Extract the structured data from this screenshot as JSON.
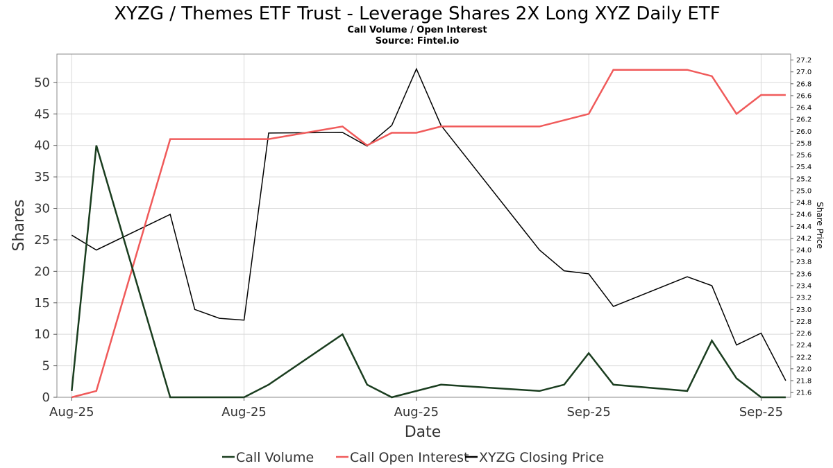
{
  "chart_data": {
    "type": "line",
    "title": "XYZG / Themes ETF Trust - Leverage Shares 2X Long XYZ Daily ETF",
    "subtitle": "Call Volume / Open Interest",
    "source": "Source: Fintel.io",
    "xlabel": "Date",
    "ylabel": "Shares",
    "y2label": "Share Price",
    "ylim": [
      0,
      54.5
    ],
    "y2lim": [
      21.52,
      27.3
    ],
    "yticks": [
      "0",
      "5",
      "10",
      "15",
      "20",
      "25",
      "30",
      "35",
      "40",
      "45",
      "50"
    ],
    "y2ticks": [
      "21.6",
      "21.8",
      "22.0",
      "22.2",
      "22.4",
      "22.6",
      "22.8",
      "23.0",
      "23.2",
      "23.4",
      "23.6",
      "23.8",
      "24.0",
      "24.2",
      "24.4",
      "24.6",
      "24.8",
      "25.0",
      "25.2",
      "25.4",
      "25.6",
      "25.8",
      "26.0",
      "26.2",
      "26.4",
      "26.6",
      "26.8",
      "27.0",
      "27.2"
    ],
    "xticks": [
      {
        "label": "Aug-25",
        "x": 0
      },
      {
        "label": "Aug-25",
        "x": 7
      },
      {
        "label": "Aug-25",
        "x": 14
      },
      {
        "label": "Sep-25",
        "x": 21
      },
      {
        "label": "Sep-25",
        "x": 28
      }
    ],
    "xlim": [
      -0.6,
      29.2
    ],
    "grid": true,
    "legend_position": "bottom",
    "series": [
      {
        "name": "Call Volume",
        "axis": "left",
        "color": "#1a3d1f",
        "width": 2.5,
        "points": [
          [
            0,
            1
          ],
          [
            1,
            40
          ],
          [
            4,
            0
          ],
          [
            6,
            0
          ],
          [
            7,
            0
          ],
          [
            8,
            2
          ],
          [
            11,
            10
          ],
          [
            12,
            2
          ],
          [
            13,
            0
          ],
          [
            15,
            2
          ],
          [
            19,
            1
          ],
          [
            20,
            2
          ],
          [
            21,
            7
          ],
          [
            22,
            2
          ],
          [
            25,
            1
          ],
          [
            26,
            9
          ],
          [
            27,
            3
          ],
          [
            28,
            0
          ],
          [
            29,
            0
          ]
        ]
      },
      {
        "name": "Call Open Interest",
        "axis": "left",
        "color": "#f05a5a",
        "width": 2.5,
        "points": [
          [
            0,
            0
          ],
          [
            1,
            1
          ],
          [
            4,
            41
          ],
          [
            6,
            41
          ],
          [
            7,
            41
          ],
          [
            8,
            41
          ],
          [
            11,
            43
          ],
          [
            12,
            40
          ],
          [
            13,
            42
          ],
          [
            14,
            42
          ],
          [
            15,
            43
          ],
          [
            19,
            43
          ],
          [
            21,
            45
          ],
          [
            22,
            52
          ],
          [
            25,
            52
          ],
          [
            26,
            51
          ],
          [
            27,
            45
          ],
          [
            28,
            48
          ],
          [
            29,
            48
          ]
        ]
      },
      {
        "name": "XYZG Closing Price",
        "axis": "right",
        "color": "#000000",
        "width": 1.5,
        "points": [
          [
            0,
            24.25
          ],
          [
            1,
            24.0
          ],
          [
            4,
            24.6
          ],
          [
            5,
            23.0
          ],
          [
            6,
            22.85
          ],
          [
            7,
            22.82
          ],
          [
            8,
            25.97
          ],
          [
            11,
            25.98
          ],
          [
            12,
            25.75
          ],
          [
            13,
            26.1
          ],
          [
            14,
            27.05
          ],
          [
            15,
            26.1
          ],
          [
            19,
            24.0
          ],
          [
            20,
            23.65
          ],
          [
            21,
            23.6
          ],
          [
            22,
            23.05
          ],
          [
            25,
            23.55
          ],
          [
            26,
            23.4
          ],
          [
            27,
            22.4
          ],
          [
            28,
            22.6
          ],
          [
            29,
            21.8
          ]
        ]
      }
    ]
  }
}
